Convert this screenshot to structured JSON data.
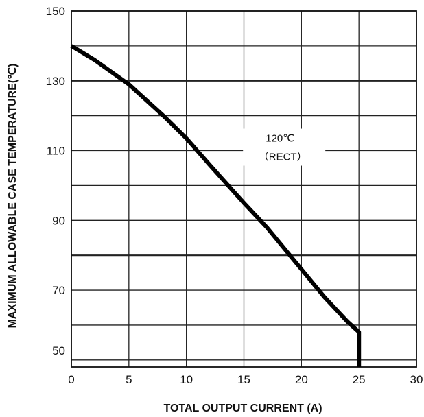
{
  "chart_data": {
    "type": "line",
    "title": "",
    "xlabel": "TOTAL OUTPUT CURRENT (A)",
    "ylabel": "MAXIMUM ALLOWABLE CASE TEMPERATURE(℃)",
    "xlim": [
      0,
      30
    ],
    "ylim": [
      48,
      150
    ],
    "x_ticks": [
      "0",
      "5",
      "10",
      "15",
      "20",
      "25",
      "30"
    ],
    "y_ticks": [
      "150",
      "130",
      "110",
      "90",
      "70",
      "50"
    ],
    "grid": true,
    "series": [
      {
        "name": "",
        "x": [
          0,
          2,
          5,
          8,
          10,
          12,
          15,
          17,
          20,
          22,
          24,
          25,
          25
        ],
        "y": [
          140,
          136,
          129,
          120,
          113.5,
          106,
          95,
          88,
          76,
          68,
          61,
          58,
          48
        ],
        "color": "#000000"
      }
    ],
    "annotation": {
      "line1": "120℃",
      "line2": "（RECT）",
      "x": 18.5,
      "y": 110
    }
  }
}
